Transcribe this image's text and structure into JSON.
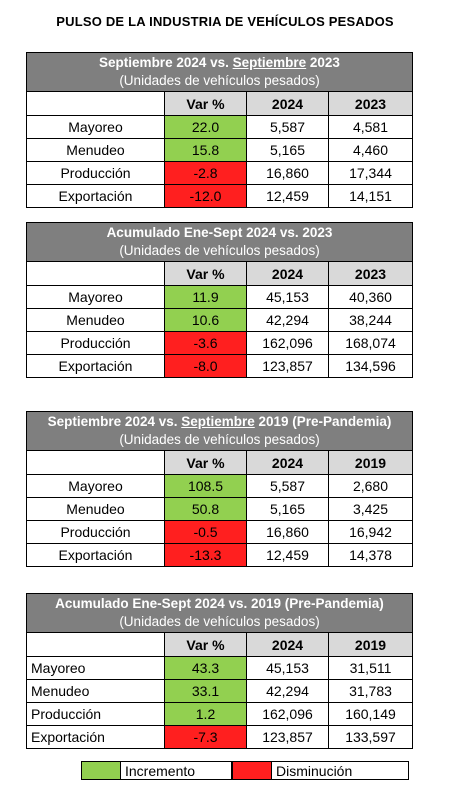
{
  "title": "PULSO DE LA INDUSTRIA DE VEHÍCULOS PESADOS",
  "columns": {
    "var": "Var %"
  },
  "tables": [
    {
      "title_pre": "Septiembre 2024 vs. ",
      "title_u": "Septiembre",
      "title_post": " 2023",
      "subtitle": "(Unidades de vehículos pesados)",
      "year1": "2024",
      "year2": "2023",
      "rows": [
        {
          "label": "Mayoreo",
          "var": "22.0",
          "v1": "5,587",
          "v2": "4,581",
          "trend": "increment"
        },
        {
          "label": "Menudeo",
          "var": "15.8",
          "v1": "5,165",
          "v2": "4,460",
          "trend": "increment"
        },
        {
          "label": "Producción",
          "var": "-2.8",
          "v1": "16,860",
          "v2": "17,344",
          "trend": "decrease"
        },
        {
          "label": "Exportación",
          "var": "-12.0",
          "v1": "12,459",
          "v2": "14,151",
          "trend": "decrease"
        }
      ]
    },
    {
      "title_pre": "Acumulado Ene-Sept 2024 vs. 2023",
      "title_u": "",
      "title_post": "",
      "subtitle": "(Unidades de vehículos pesados)",
      "year1": "2024",
      "year2": "2023",
      "rows": [
        {
          "label": "Mayoreo",
          "var": "11.9",
          "v1": "45,153",
          "v2": "40,360",
          "trend": "increment"
        },
        {
          "label": "Menudeo",
          "var": "10.6",
          "v1": "42,294",
          "v2": "38,244",
          "trend": "increment"
        },
        {
          "label": "Producción",
          "var": "-3.6",
          "v1": "162,096",
          "v2": "168,074",
          "trend": "decrease"
        },
        {
          "label": "Exportación",
          "var": "-8.0",
          "v1": "123,857",
          "v2": "134,596",
          "trend": "decrease"
        }
      ]
    },
    {
      "title_pre": "Septiembre 2024 vs. ",
      "title_u": "Septiembre",
      "title_post": " 2019 (Pre-Pandemia)",
      "subtitle": "(Unidades de vehículos pesados)",
      "year1": "2024",
      "year2": "2019",
      "rows": [
        {
          "label": "Mayoreo",
          "var": "108.5",
          "v1": "5,587",
          "v2": "2,680",
          "trend": "increment"
        },
        {
          "label": "Menudeo",
          "var": "50.8",
          "v1": "5,165",
          "v2": "3,425",
          "trend": "increment"
        },
        {
          "label": "Producción",
          "var": "-0.5",
          "v1": "16,860",
          "v2": "16,942",
          "trend": "decrease"
        },
        {
          "label": "Exportación",
          "var": "-13.3",
          "v1": "12,459",
          "v2": "14,378",
          "trend": "decrease"
        }
      ]
    },
    {
      "title_pre": "Acumulado Ene-Sept 2024 vs. 2019 (Pre-Pandemia)",
      "title_u": "",
      "title_post": "",
      "subtitle": "(Unidades de vehículos pesados)",
      "year1": "2024",
      "year2": "2019",
      "rows": [
        {
          "label": "Mayoreo",
          "var": "43.3",
          "v1": "45,153",
          "v2": "31,511",
          "trend": "increment"
        },
        {
          "label": "Menudeo",
          "var": "33.1",
          "v1": "42,294",
          "v2": "31,783",
          "trend": "increment"
        },
        {
          "label": "Producción",
          "var": "1.2",
          "v1": "162,096",
          "v2": "160,149",
          "trend": "increment"
        },
        {
          "label": "Exportación",
          "var": "-7.3",
          "v1": "123,857",
          "v2": "133,597",
          "trend": "decrease"
        }
      ]
    }
  ],
  "legend": {
    "increment_label": "Incremento",
    "decrease_label": "Disminución",
    "increment_color": "#92d050",
    "decrease_color": "#ff1f1f"
  }
}
